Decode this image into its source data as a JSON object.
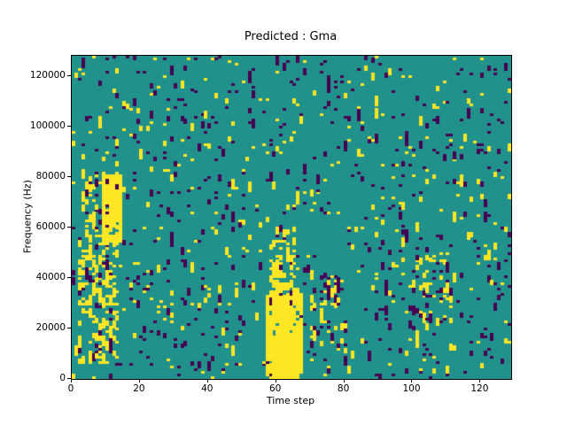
{
  "figure": {
    "title": "Predicted : Gma",
    "xlabel": "Time step",
    "ylabel": "Frequency (Hz)"
  },
  "chart_data": {
    "type": "heatmap",
    "title": "Predicted : Gma",
    "xlabel": "Time step",
    "ylabel": "Frequency (Hz)",
    "x_range": [
      0,
      129
    ],
    "y_range": [
      0,
      128000
    ],
    "x_ticks": [
      0,
      20,
      40,
      60,
      80,
      100,
      120
    ],
    "y_ticks": [
      0,
      20000,
      40000,
      60000,
      80000,
      100000,
      120000
    ],
    "grid": false,
    "legend": "none",
    "colors": {
      "background": "#21918c",
      "positive": "#fde725",
      "negative": "#440154",
      "spine": "#000000"
    },
    "cells": {
      "nx": 129,
      "ny": 128,
      "cell_height_hz": 1000
    },
    "pattern": {
      "seed": 7,
      "base_yellow_density": 0.02,
      "base_dark_density": 0.035,
      "run_boost": 0.35,
      "clusters": [
        {
          "x0": 57,
          "x1": 67,
          "y0": 0,
          "y1": 32000,
          "yellow": 0.55,
          "dark": 0.0
        },
        {
          "x0": 60,
          "x1": 66,
          "y0": 0,
          "y1": 14000,
          "yellow": 0.75,
          "dark": 0.0
        },
        {
          "x0": 58,
          "x1": 65,
          "y0": 32000,
          "y1": 58000,
          "yellow": 0.25,
          "dark": 0.0
        },
        {
          "x0": 2,
          "x1": 13,
          "y0": 6000,
          "y1": 56000,
          "yellow": 0.2,
          "dark": 0.02
        },
        {
          "x0": 9,
          "x1": 14,
          "y0": 54000,
          "y1": 80000,
          "yellow": 0.5,
          "dark": 0.0
        },
        {
          "x0": 3,
          "x1": 9,
          "y0": 56000,
          "y1": 82000,
          "yellow": 0.15,
          "dark": 0.03
        },
        {
          "x0": 100,
          "x1": 112,
          "y0": 20000,
          "y1": 50000,
          "yellow": 0.1,
          "dark": 0.05
        },
        {
          "x0": 70,
          "x1": 80,
          "y0": 10000,
          "y1": 40000,
          "yellow": 0.1,
          "dark": 0.04
        }
      ]
    }
  }
}
